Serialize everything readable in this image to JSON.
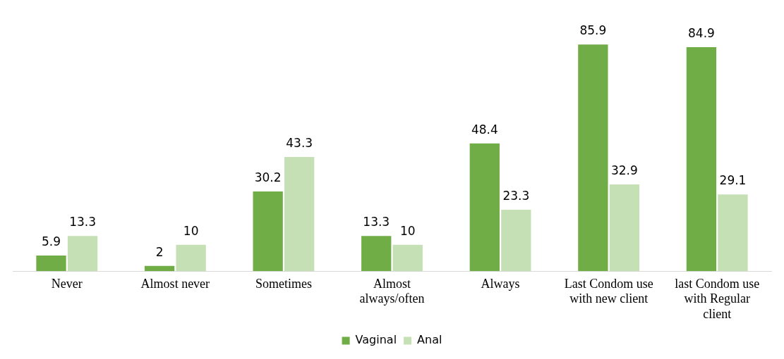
{
  "chart_data": {
    "type": "bar",
    "categories": [
      "Never",
      "Almost never",
      "Sometimes",
      "Almost always/often",
      "Always",
      "Last Condom use with new client",
      "last Condom use with Regular client"
    ],
    "series": [
      {
        "name": "Vaginal",
        "color": "#70ad47",
        "values": [
          5.9,
          2,
          30.2,
          13.3,
          48.4,
          85.9,
          84.9
        ]
      },
      {
        "name": "Anal",
        "color": "#c5e0b4",
        "values": [
          13.3,
          10,
          43.3,
          10,
          23.3,
          32.9,
          29.1
        ]
      }
    ],
    "data_labels": true,
    "legend": "bottom",
    "grid": false
  }
}
